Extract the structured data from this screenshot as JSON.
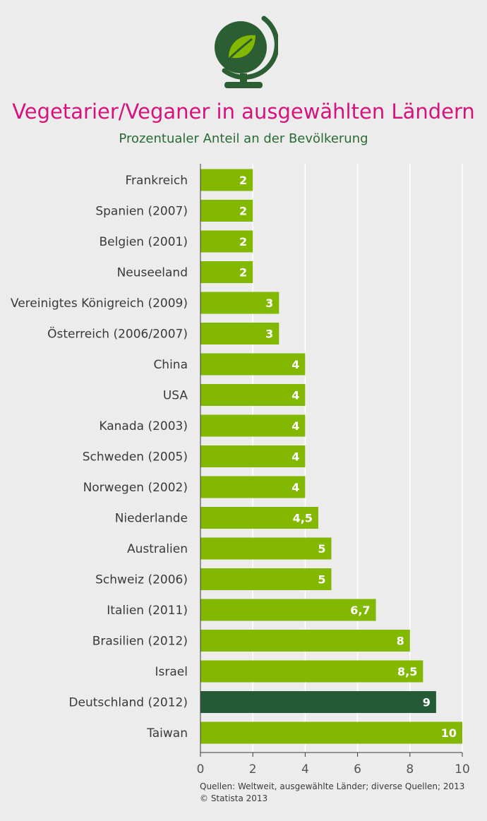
{
  "header": {
    "title": "Vegetarier/Veganer in ausgewählten Ländern",
    "subtitle": "Prozentualer Anteil an der Bevölkerung",
    "logo_icon": "globe-leaf-icon"
  },
  "footer": {
    "source": "Quellen: Weltweit, ausgewählte Länder; diverse Quellen; 2013",
    "copyright": "© Statista 2013"
  },
  "colors": {
    "bar": "#82b800",
    "highlight_bar": "#245a35",
    "title": "#d6137d",
    "subtitle": "#2a6a36",
    "background": "#ececec"
  },
  "chart_data": {
    "type": "bar",
    "orientation": "horizontal",
    "categories": [
      "Frankreich",
      "Spanien (2007)",
      "Belgien (2001)",
      "Neuseeland",
      "Vereinigtes Königreich (2009)",
      "Österreich (2006/2007)",
      "China",
      "USA",
      "Kanada (2003)",
      "Schweden (2005)",
      "Norwegen (2002)",
      "Niederlande",
      "Australien",
      "Schweiz (2006)",
      "Italien (2011)",
      "Brasilien (2012)",
      "Israel",
      "Deutschland (2012)",
      "Taiwan"
    ],
    "values": [
      2,
      2,
      2,
      2,
      3,
      3,
      4,
      4,
      4,
      4,
      4,
      4.5,
      5,
      5,
      6.7,
      8,
      8.5,
      9,
      10
    ],
    "value_labels": [
      "2",
      "2",
      "2",
      "2",
      "3",
      "3",
      "4",
      "4",
      "4",
      "4",
      "4",
      "4,5",
      "5",
      "5",
      "6,7",
      "8",
      "8,5",
      "9",
      "10"
    ],
    "highlighted": [
      "Deutschland (2012)"
    ],
    "xlim": [
      0,
      10
    ],
    "xticks": [
      "0",
      "2",
      "4",
      "6",
      "8",
      "10"
    ],
    "grid": true,
    "title": "Vegetarier/Veganer in ausgewählten Ländern",
    "subtitle": "Prozentualer Anteil an der Bevölkerung"
  }
}
